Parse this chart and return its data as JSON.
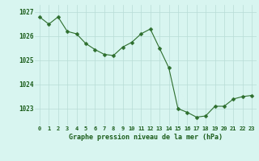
{
  "x": [
    0,
    1,
    2,
    3,
    4,
    5,
    6,
    7,
    8,
    9,
    10,
    11,
    12,
    13,
    14,
    15,
    16,
    17,
    18,
    19,
    20,
    21,
    22,
    23
  ],
  "y": [
    1026.8,
    1026.5,
    1026.8,
    1026.2,
    1026.1,
    1025.7,
    1025.45,
    1025.25,
    1025.2,
    1025.55,
    1025.75,
    1026.1,
    1026.3,
    1025.5,
    1024.7,
    1023.0,
    1022.85,
    1022.65,
    1022.7,
    1023.1,
    1023.1,
    1023.4,
    1023.5,
    1023.55
  ],
  "line_color": "#2d6e2d",
  "marker": "D",
  "marker_size": 2.5,
  "bg_color": "#d8f5f0",
  "grid_color": "#b8dcd6",
  "title": "Graphe pression niveau de la mer (hPa)",
  "title_color": "#1a5c1a",
  "tick_color": "#1a5c1a",
  "ylim_min": 1022.3,
  "ylim_max": 1027.3,
  "ytick_values": [
    1023,
    1024,
    1025,
    1026,
    1027
  ],
  "xtick_values": [
    0,
    1,
    2,
    3,
    4,
    5,
    6,
    7,
    8,
    9,
    10,
    11,
    12,
    13,
    14,
    15,
    16,
    17,
    18,
    19,
    20,
    21,
    22,
    23
  ]
}
